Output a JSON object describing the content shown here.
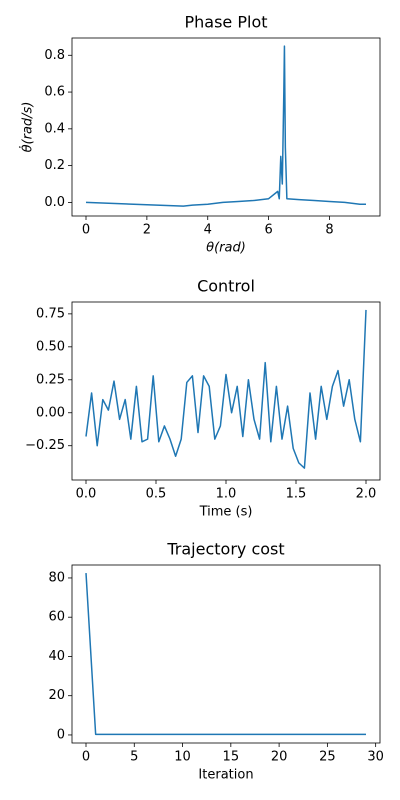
{
  "chart_data": [
    {
      "type": "line",
      "title": "Phase Plot",
      "xlabel": "θ(rad)",
      "ylabel": "θ̇(rad/s)",
      "color": "#1f77b4",
      "x": [
        0,
        3.2,
        3.5,
        4,
        4.5,
        5,
        5.5,
        6,
        6.3,
        6.35,
        6.4,
        6.45,
        6.5,
        6.52,
        6.55,
        6.6,
        7,
        7.5,
        8,
        8.5,
        9,
        9.2
      ],
      "values": [
        0,
        -0.02,
        -0.015,
        -0.01,
        0,
        0.005,
        0.01,
        0.02,
        0.06,
        0.02,
        0.25,
        0.1,
        0.6,
        0.85,
        0.3,
        0.02,
        0.015,
        0.01,
        0.005,
        0.0,
        -0.01,
        -0.01
      ],
      "xlim": [
        -0.46,
        9.66
      ],
      "ylim": [
        -0.074,
        0.894
      ],
      "xticks": [
        0,
        2,
        4,
        6,
        8
      ],
      "yticks": [
        {
          "value": 0,
          "label": "0.0"
        },
        {
          "value": 0.2,
          "label": "0.2"
        },
        {
          "value": 0.4,
          "label": "0.4"
        },
        {
          "value": 0.6,
          "label": "0.6"
        },
        {
          "value": 0.8,
          "label": "0.8"
        }
      ]
    },
    {
      "type": "line",
      "title": "Control",
      "xlabel": "Time (s)",
      "color": "#1f77b4",
      "x": [
        0,
        0.04,
        0.08,
        0.12,
        0.16,
        0.2,
        0.24,
        0.28,
        0.32,
        0.36,
        0.4,
        0.44,
        0.48,
        0.52,
        0.56,
        0.6,
        0.64,
        0.68,
        0.72,
        0.76,
        0.8,
        0.84,
        0.88,
        0.92,
        0.96,
        1.0,
        1.04,
        1.08,
        1.12,
        1.16,
        1.2,
        1.24,
        1.28,
        1.32,
        1.36,
        1.4,
        1.44,
        1.48,
        1.52,
        1.56,
        1.6,
        1.64,
        1.68,
        1.72,
        1.76,
        1.8,
        1.84,
        1.88,
        1.92,
        1.96,
        2.0
      ],
      "values": [
        -0.18,
        0.15,
        -0.25,
        0.1,
        0.02,
        0.24,
        -0.05,
        0.1,
        -0.2,
        0.2,
        -0.22,
        -0.2,
        0.28,
        -0.22,
        -0.1,
        -0.2,
        -0.33,
        -0.2,
        0.23,
        0.28,
        -0.15,
        0.28,
        0.2,
        -0.2,
        -0.1,
        0.29,
        0.0,
        0.2,
        -0.18,
        0.25,
        -0.05,
        -0.2,
        0.38,
        -0.22,
        0.2,
        -0.2,
        0.05,
        -0.27,
        -0.38,
        -0.42,
        0.15,
        -0.2,
        0.2,
        -0.05,
        0.2,
        0.32,
        0.05,
        0.25,
        -0.05,
        -0.22,
        0.78
      ],
      "xlim": [
        -0.1,
        2.1
      ],
      "ylim": [
        -0.51,
        0.84
      ],
      "xticks": [
        {
          "value": 0,
          "label": "0.0"
        },
        {
          "value": 0.5,
          "label": "0.5"
        },
        {
          "value": 1,
          "label": "1.0"
        },
        {
          "value": 1.5,
          "label": "1.5"
        },
        {
          "value": 2,
          "label": "2.0"
        }
      ],
      "yticks": [
        {
          "value": -0.25,
          "label": "−0.25"
        },
        {
          "value": 0,
          "label": "0.00"
        },
        {
          "value": 0.25,
          "label": "0.25"
        },
        {
          "value": 0.5,
          "label": "0.50"
        },
        {
          "value": 0.75,
          "label": "0.75"
        }
      ]
    },
    {
      "type": "line",
      "title": "Trajectory cost",
      "xlabel": "Iteration",
      "color": "#1f77b4",
      "x": [
        0,
        1,
        2,
        3,
        4,
        5,
        6,
        7,
        8,
        9,
        10,
        11,
        12,
        13,
        14,
        15,
        16,
        17,
        18,
        19,
        20,
        21,
        22,
        23,
        24,
        25,
        26,
        27,
        28,
        29
      ],
      "values": [
        82.5,
        0.3,
        0.3,
        0.3,
        0.3,
        0.3,
        0.3,
        0.3,
        0.3,
        0.3,
        0.3,
        0.3,
        0.3,
        0.3,
        0.3,
        0.3,
        0.3,
        0.3,
        0.3,
        0.3,
        0.3,
        0.3,
        0.3,
        0.3,
        0.3,
        0.3,
        0.3,
        0.3,
        0.3,
        0.3
      ],
      "xlim": [
        -1.45,
        30.45
      ],
      "ylim": [
        -4.1,
        86.6
      ],
      "xticks": [
        0,
        5,
        10,
        15,
        20,
        25,
        30
      ],
      "yticks": [
        0,
        20,
        40,
        60,
        80
      ]
    }
  ]
}
